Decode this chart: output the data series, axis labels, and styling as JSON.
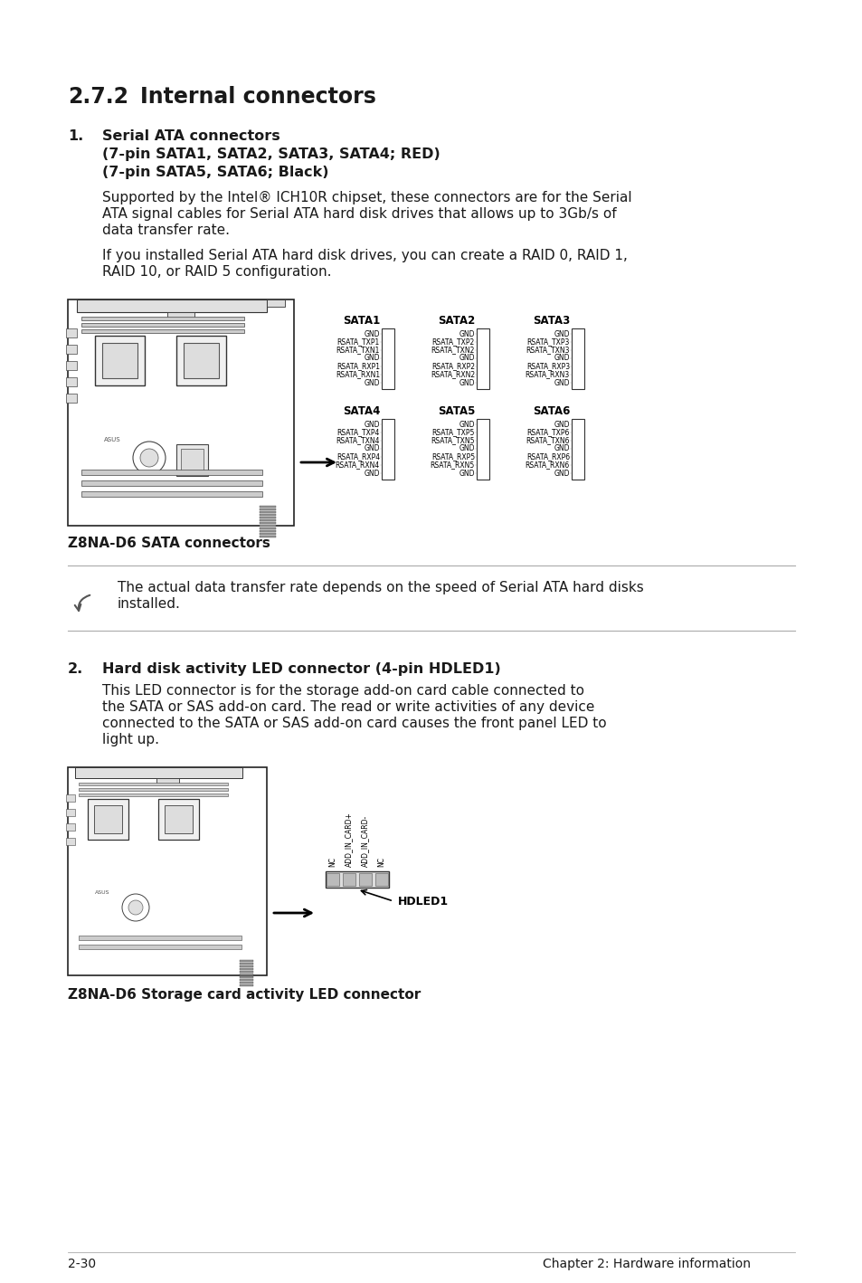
{
  "title_num": "2.7.2",
  "title_text": "Internal connectors",
  "bg_color": "#ffffff",
  "text_color": "#000000",
  "page_footer_left": "2-30",
  "page_footer_right": "Chapter 2: Hardware information",
  "s1_num": "1.",
  "s1_title": "Serial ATA connectors",
  "s1_sub1": "(7-pin SATA1, SATA2, SATA3, SATA4; RED)",
  "s1_sub2": "(7-pin SATA5, SATA6; Black)",
  "s1_body1_line1": "Supported by the Intel® ICH10R chipset, these connectors are for the Serial",
  "s1_body1_line2": "ATA signal cables for Serial ATA hard disk drives that allows up to 3Gb/s of",
  "s1_body1_line3": "data transfer rate.",
  "s1_body2_line1": "If you installed Serial ATA hard disk drives, you can create a RAID 0, RAID 1,",
  "s1_body2_line2": "RAID 10, or RAID 5 configuration.",
  "fig1_caption": "Z8NA-D6 SATA connectors",
  "sata_row1_labels": [
    "SATA1",
    "SATA2",
    "SATA3"
  ],
  "sata_row2_labels": [
    "SATA4",
    "SATA5",
    "SATA6"
  ],
  "sata_row1_pins": [
    [
      "GND",
      "RSATA_TXP1",
      "RSATA_TXN1",
      "GND",
      "RSATA_RXP1",
      "RSATA_RXN1",
      "GND"
    ],
    [
      "GND",
      "RSATA_TXP2",
      "RSATA_TXN2",
      "GND",
      "RSATA_RXP2",
      "RSATA_RXN2",
      "GND"
    ],
    [
      "GND",
      "RSATA_TXP3",
      "RSATA_TXN3",
      "GND",
      "RSATA_RXP3",
      "RSATA_RXN3",
      "GND"
    ]
  ],
  "sata_row2_pins": [
    [
      "GND",
      "RSATA_TXP4",
      "RSATA_TXN4",
      "GND",
      "RSATA_RXP4",
      "RSATA_RXN4",
      "GND"
    ],
    [
      "GND",
      "RSATA_TXP5",
      "RSATA_TXN5",
      "GND",
      "RSATA_RXP5",
      "RSATA_RXN5",
      "GND"
    ],
    [
      "GND",
      "RSATA_TXP6",
      "RSATA_TXN6",
      "GND",
      "RSATA_RXP6",
      "RSATA_RXN6",
      "GND"
    ]
  ],
  "note_text_line1": "The actual data transfer rate depends on the speed of Serial ATA hard disks",
  "note_text_line2": "installed.",
  "s2_num": "2.",
  "s2_title": "Hard disk activity LED connector (4-pin HDLED1)",
  "s2_body_line1": "This LED connector is for the storage add-on card cable connected to",
  "s2_body_line2": "the SATA or SAS add-on card. The read or write activities of any device",
  "s2_body_line3": "connected to the SATA or SAS add-on card causes the front panel LED to",
  "s2_body_line4": "light up.",
  "fig2_caption": "Z8NA-D6 Storage card activity LED connector",
  "hdled_pins": [
    "NC",
    "ADD_IN_CARD+",
    "ADD_IN_CARD-",
    "NC"
  ]
}
